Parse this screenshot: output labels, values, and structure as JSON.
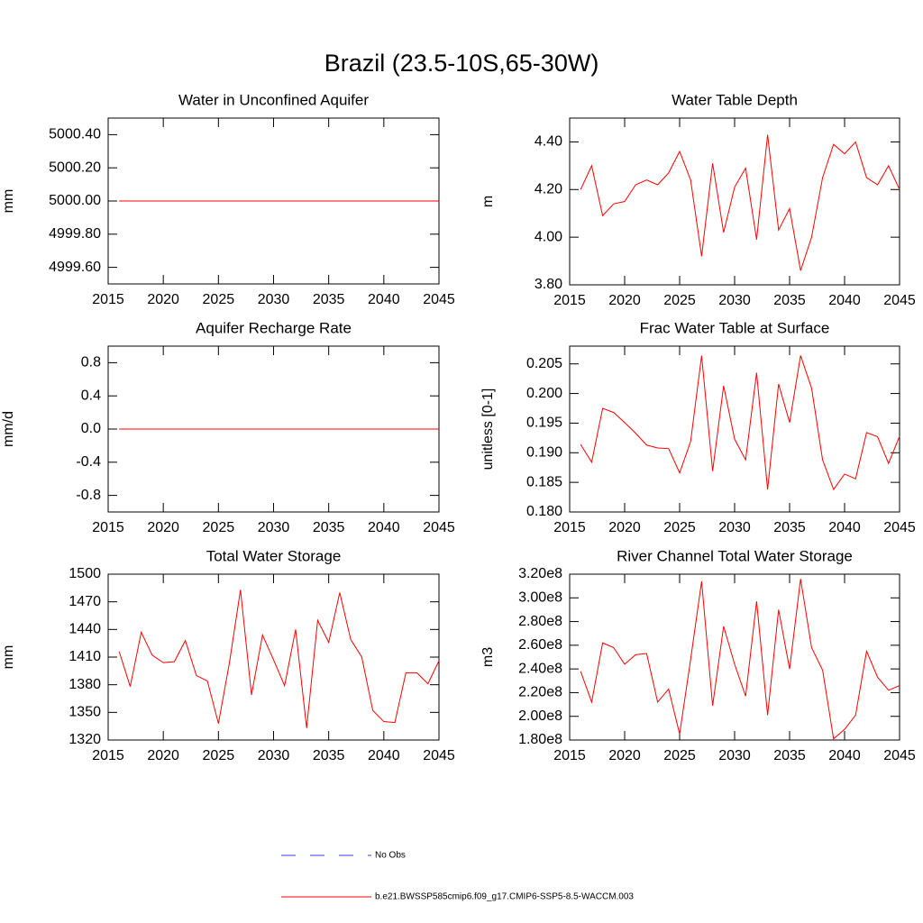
{
  "title": "Brazil (23.5-10S,65-30W)",
  "legend": [
    {
      "label": "No Obs",
      "color": "#3b3bd6",
      "dashed": true
    },
    {
      "label": "b.e21.BWSSP585cmip6.f09_g17.CMIP6-SSP5-8.5-WACCM.003",
      "color": "#ff0000",
      "dashed": false
    }
  ],
  "chart_data": [
    {
      "type": "line",
      "title": "Water in Unconfined Aquifer",
      "ylabel": "mm",
      "color": "#ff0000",
      "x": [
        2016,
        2017,
        2018,
        2019,
        2020,
        2021,
        2022,
        2023,
        2024,
        2025,
        2026,
        2027,
        2028,
        2029,
        2030,
        2031,
        2032,
        2033,
        2034,
        2035,
        2036,
        2037,
        2038,
        2039,
        2040,
        2041,
        2042,
        2043,
        2044,
        2045
      ],
      "values": [
        5000,
        5000,
        5000,
        5000,
        5000,
        5000,
        5000,
        5000,
        5000,
        5000,
        5000,
        5000,
        5000,
        5000,
        5000,
        5000,
        5000,
        5000,
        5000,
        5000,
        5000,
        5000,
        5000,
        5000,
        5000,
        5000,
        5000,
        5000,
        5000,
        5000
      ],
      "xlim": [
        2015,
        2045
      ],
      "xticks": [
        2015,
        2020,
        2025,
        2030,
        2035,
        2040,
        2045
      ],
      "ylim": [
        4999.5,
        5000.5
      ],
      "yticks": [
        {
          "value": 4999.6,
          "label": "4999.60"
        },
        {
          "value": 4999.8,
          "label": "4999.80"
        },
        {
          "value": 5000,
          "label": "5000.00"
        },
        {
          "value": 5000.2,
          "label": "5000.20"
        },
        {
          "value": 5000.4,
          "label": "5000.40"
        }
      ]
    },
    {
      "type": "line",
      "title": "Water Table Depth",
      "ylabel": "m",
      "color": "#ff0000",
      "x": [
        2016,
        2017,
        2018,
        2019,
        2020,
        2021,
        2022,
        2023,
        2024,
        2025,
        2026,
        2027,
        2028,
        2029,
        2030,
        2031,
        2032,
        2033,
        2034,
        2035,
        2036,
        2037,
        2038,
        2039,
        2040,
        2041,
        2042,
        2043,
        2044,
        2045
      ],
      "values": [
        4.2,
        4.3,
        4.09,
        4.14,
        4.15,
        4.22,
        4.24,
        4.22,
        4.27,
        4.36,
        4.24,
        3.92,
        4.31,
        4.02,
        4.21,
        4.29,
        3.99,
        4.43,
        4.03,
        4.12,
        3.86,
        4.0,
        4.25,
        4.39,
        4.35,
        4.4,
        4.25,
        4.22,
        4.3,
        4.2
      ],
      "xlim": [
        2015,
        2045
      ],
      "xticks": [
        2015,
        2020,
        2025,
        2030,
        2035,
        2040,
        2045
      ],
      "ylim": [
        3.8,
        4.5
      ],
      "yticks": [
        {
          "value": 3.8,
          "label": "3.80"
        },
        {
          "value": 4.0,
          "label": "4.00"
        },
        {
          "value": 4.2,
          "label": "4.20"
        },
        {
          "value": 4.4,
          "label": "4.40"
        }
      ]
    },
    {
      "type": "line",
      "title": "Aquifer Recharge Rate",
      "ylabel": "mm/d",
      "color": "#ff0000",
      "x": [
        2016,
        2017,
        2018,
        2019,
        2020,
        2021,
        2022,
        2023,
        2024,
        2025,
        2026,
        2027,
        2028,
        2029,
        2030,
        2031,
        2032,
        2033,
        2034,
        2035,
        2036,
        2037,
        2038,
        2039,
        2040,
        2041,
        2042,
        2043,
        2044,
        2045
      ],
      "values": [
        0,
        0,
        0,
        0,
        0,
        0,
        0,
        0,
        0,
        0,
        0,
        0,
        0,
        0,
        0,
        0,
        0,
        0,
        0,
        0,
        0,
        0,
        0,
        0,
        0,
        0,
        0,
        0,
        0,
        0
      ],
      "xlim": [
        2015,
        2045
      ],
      "xticks": [
        2015,
        2020,
        2025,
        2030,
        2035,
        2040,
        2045
      ],
      "ylim": [
        -1,
        1
      ],
      "yticks": [
        -0.8,
        -0.4,
        {
          "value": 0,
          "label": "0.0"
        },
        0.4,
        0.8
      ]
    },
    {
      "type": "line",
      "title": "Frac Water Table at Surface",
      "ylabel": "unitless [0-1]",
      "color": "#ff0000",
      "x": [
        2016,
        2017,
        2018,
        2019,
        2020,
        2021,
        2022,
        2023,
        2024,
        2025,
        2026,
        2027,
        2028,
        2029,
        2030,
        2031,
        2032,
        2033,
        2034,
        2035,
        2036,
        2037,
        2038,
        2039,
        2040,
        2041,
        2042,
        2043,
        2044,
        2045
      ],
      "values": [
        0.1914,
        0.1884,
        0.1975,
        0.1968,
        0.1951,
        0.1933,
        0.1913,
        0.1908,
        0.1907,
        0.1866,
        0.1919,
        0.2064,
        0.1869,
        0.2013,
        0.1923,
        0.1888,
        0.2035,
        0.1838,
        0.2016,
        0.1951,
        0.2064,
        0.2009,
        0.1888,
        0.1838,
        0.1864,
        0.1856,
        0.1934,
        0.1927,
        0.1882,
        0.1928
      ],
      "xlim": [
        2015,
        2045
      ],
      "xticks": [
        2015,
        2020,
        2025,
        2030,
        2035,
        2040,
        2045
      ],
      "ylim": [
        0.18,
        0.208
      ],
      "yticks": [
        {
          "value": 0.18,
          "label": "0.180"
        },
        0.185,
        {
          "value": 0.19,
          "label": "0.190"
        },
        0.195,
        {
          "value": 0.2,
          "label": "0.200"
        },
        0.205
      ]
    },
    {
      "type": "line",
      "title": "Total Water Storage",
      "ylabel": "mm",
      "color": "#ff0000",
      "x": [
        2016,
        2017,
        2018,
        2019,
        2020,
        2021,
        2022,
        2023,
        2024,
        2025,
        2026,
        2027,
        2028,
        2029,
        2030,
        2031,
        2032,
        2033,
        2034,
        2035,
        2036,
        2037,
        2038,
        2039,
        2040,
        2041,
        2042,
        2043,
        2044,
        2045
      ],
      "values": [
        1416,
        1378,
        1437,
        1412,
        1404,
        1405,
        1428,
        1390,
        1384,
        1338,
        1404,
        1483,
        1369,
        1434,
        1407,
        1379,
        1440,
        1333,
        1450,
        1426,
        1480,
        1429,
        1410,
        1352,
        1340,
        1339,
        1393,
        1393,
        1381,
        1406
      ],
      "xlim": [
        2015,
        2045
      ],
      "xticks": [
        2015,
        2020,
        2025,
        2030,
        2035,
        2040,
        2045
      ],
      "ylim": [
        1320,
        1500
      ],
      "yticks": [
        1320,
        1350,
        1380,
        1410,
        1440,
        1470,
        1500
      ]
    },
    {
      "type": "line",
      "title": "River Channel Total Water Storage",
      "ylabel": "m3",
      "color": "#ff0000",
      "x": [
        2016,
        2017,
        2018,
        2019,
        2020,
        2021,
        2022,
        2023,
        2024,
        2025,
        2026,
        2027,
        2028,
        2029,
        2030,
        2031,
        2032,
        2033,
        2034,
        2035,
        2036,
        2037,
        2038,
        2039,
        2040,
        2041,
        2042,
        2043,
        2044,
        2045
      ],
      "values": [
        238000000,
        212000000,
        262000000,
        258000000,
        244000000,
        252000000,
        253000000,
        212000000,
        223000000,
        185000000,
        248000000,
        314000000,
        209000000,
        276000000,
        244000000,
        217000000,
        297000000,
        201000000,
        290000000,
        240000000,
        316000000,
        258000000,
        239000000,
        181000000,
        189000000,
        201000000,
        255000000,
        233000000,
        222000000,
        226000000
      ],
      "xlim": [
        2015,
        2045
      ],
      "xticks": [
        2015,
        2020,
        2025,
        2030,
        2035,
        2040,
        2045
      ],
      "ylim": [
        180000000,
        320000000
      ],
      "yticks": [
        {
          "value": 180000000,
          "label": "1.80e8"
        },
        {
          "value": 200000000,
          "label": "2.00e8"
        },
        {
          "value": 220000000,
          "label": "2.20e8"
        },
        {
          "value": 240000000,
          "label": "2.40e8"
        },
        {
          "value": 260000000,
          "label": "2.60e8"
        },
        {
          "value": 280000000,
          "label": "2.80e8"
        },
        {
          "value": 300000000,
          "label": "3.00e8"
        },
        {
          "value": 320000000,
          "label": "3.20e8"
        }
      ]
    }
  ]
}
